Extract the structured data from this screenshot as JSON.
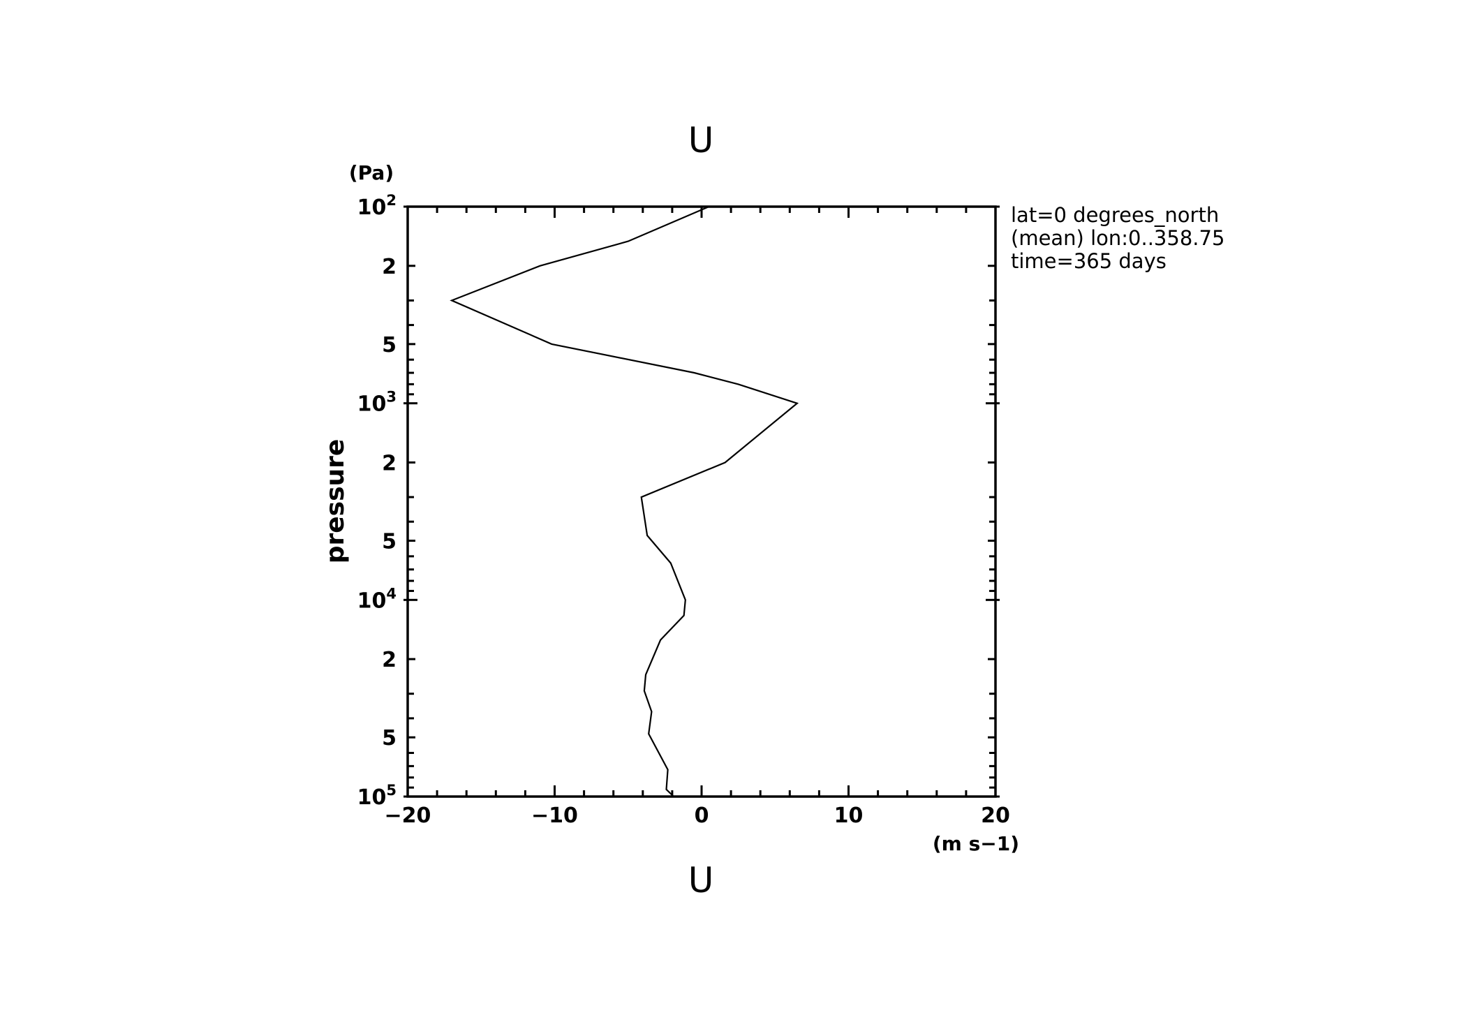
{
  "chart_data": {
    "type": "line",
    "title": "U",
    "xlabel": "U",
    "xunit": "(m s−1)",
    "ylabel": "pressure",
    "yunit": "(Pa)",
    "xlim": [
      -20,
      20
    ],
    "ylim": [
      100,
      100000
    ],
    "y_scale": "log",
    "y_inverted": true,
    "grid": false,
    "x_ticks": [
      {
        "value": -20,
        "label": "−20"
      },
      {
        "value": -10,
        "label": "−10"
      },
      {
        "value": 0,
        "label": "0"
      },
      {
        "value": 10,
        "label": "10"
      },
      {
        "value": 20,
        "label": "20"
      }
    ],
    "y_ticks": [
      {
        "value": 100,
        "base": "10",
        "exp": "2"
      },
      {
        "value": 200,
        "base": "2",
        "exp": ""
      },
      {
        "value": 500,
        "base": "5",
        "exp": ""
      },
      {
        "value": 1000,
        "base": "10",
        "exp": "3"
      },
      {
        "value": 2000,
        "base": "2",
        "exp": ""
      },
      {
        "value": 5000,
        "base": "5",
        "exp": ""
      },
      {
        "value": 10000,
        "base": "10",
        "exp": "4"
      },
      {
        "value": 20000,
        "base": "2",
        "exp": ""
      },
      {
        "value": 50000,
        "base": "5",
        "exp": ""
      },
      {
        "value": 100000,
        "base": "10",
        "exp": "5"
      }
    ],
    "annotations": [
      "lat=0 degrees_north",
      "(mean) lon:0..358.75",
      "time=365 days"
    ],
    "series": [
      {
        "x": [
          0.5,
          -5.0,
          -11.0,
          -17.0,
          -10.2,
          -0.5,
          2.5,
          6.5,
          1.6,
          -4.1,
          -3.7,
          -2.1,
          -1.1,
          -1.2,
          -2.8,
          -3.8,
          -3.9,
          -3.4,
          -3.6,
          -2.3,
          -2.4,
          -1.9
        ],
        "y": [
          100,
          150,
          200,
          300,
          500,
          700,
          800,
          1000,
          2000,
          3000,
          4700,
          6500,
          10000,
          12000,
          16000,
          24000,
          29000,
          37000,
          48000,
          73000,
          92000,
          100000
        ]
      }
    ]
  }
}
